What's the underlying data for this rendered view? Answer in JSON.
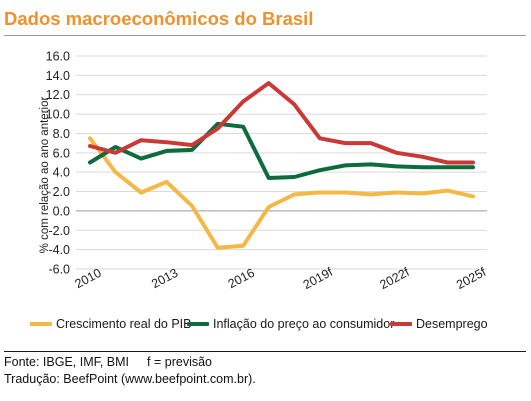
{
  "title": "Dados macroeconômicos do Brasil",
  "footer": {
    "source": "Fonte: IBGE, IMF, BMI",
    "forecast_note": "f = previsão",
    "translation": "Tradução: BeefPoint (www.beefpoint.com.br)."
  },
  "chart_data": {
    "type": "line",
    "title": "Dados macroeconômicos do Brasil",
    "ylabel": "% com relação ao ano anterior",
    "xlabel": "",
    "ylim": [
      -6.0,
      16.0
    ],
    "y_ticks": [
      "16.0",
      "14.0",
      "12.0",
      "10.0",
      "8.0",
      "6.0",
      "4.0",
      "2.0",
      "0.0",
      "-2.0",
      "-4.0",
      "-6.0"
    ],
    "x": [
      2010,
      2011,
      2012,
      2013,
      2014,
      2015,
      2016,
      2017,
      2018,
      2019,
      2020,
      2021,
      2022,
      2023,
      2024,
      2025
    ],
    "x_tick_labels": [
      {
        "year": 2010,
        "label": "2010"
      },
      {
        "year": 2013,
        "label": "2013"
      },
      {
        "year": 2016,
        "label": "2016"
      },
      {
        "year": 2019,
        "label": "2019f"
      },
      {
        "year": 2022,
        "label": "2022f"
      },
      {
        "year": 2025,
        "label": "2025f"
      }
    ],
    "grid": "horizontal",
    "legend_position": "bottom",
    "series": [
      {
        "name": "Crescimento real do PIB",
        "color": "#f5b746",
        "values": [
          7.5,
          4.0,
          1.9,
          3.0,
          0.5,
          -3.8,
          -3.6,
          0.4,
          1.7,
          1.9,
          1.9,
          1.7,
          1.9,
          1.8,
          2.1,
          1.5
        ]
      },
      {
        "name": "Inflação do preço ao consumidor",
        "color": "#0e6b3e",
        "values": [
          5.0,
          6.6,
          5.4,
          6.2,
          6.3,
          9.0,
          8.7,
          3.4,
          3.5,
          4.2,
          4.7,
          4.8,
          4.6,
          4.5,
          4.5,
          4.5
        ]
      },
      {
        "name": "Desemprego",
        "color": "#c93a37",
        "values": [
          6.7,
          6.0,
          7.3,
          7.1,
          6.8,
          8.5,
          11.3,
          13.2,
          11.0,
          7.5,
          7.0,
          7.0,
          6.0,
          5.6,
          5.0,
          5.0
        ]
      }
    ]
  }
}
